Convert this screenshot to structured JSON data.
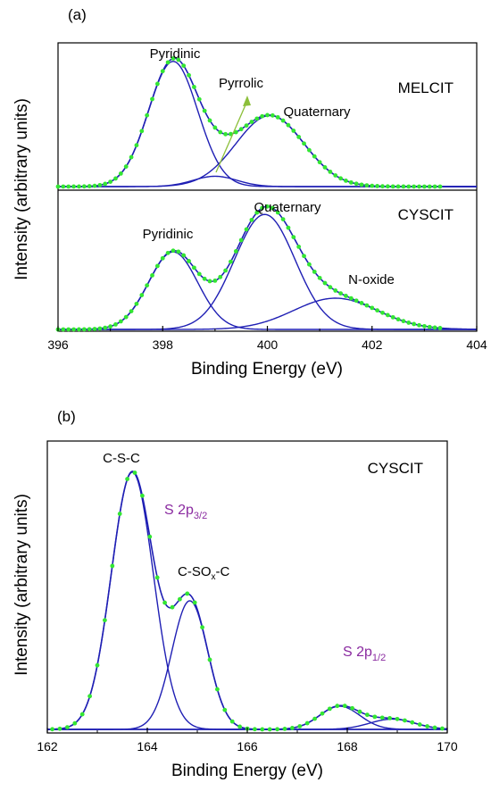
{
  "colors": {
    "fit": "#1f1fb4",
    "data": "#33e633",
    "arrow": "#8cbf3a",
    "accent": "#8a2aa0",
    "axis": "#000000"
  },
  "chart_data": [
    {
      "type": "line",
      "panel_label": "(a)",
      "xlabel": "Binding Energy (eV)",
      "ylabel": "Intensity (arbitrary units)",
      "xlim": [
        396,
        404
      ],
      "xticks": [
        "396",
        "398",
        "400",
        "402",
        "404"
      ],
      "grid": false,
      "subplots": [
        {
          "sample": "MELCIT",
          "ylim": [
            0,
            1.1
          ],
          "peaks": [
            {
              "label": "Pyridinic",
              "center": 398.2,
              "height": 0.97,
              "sigma": 0.47
            },
            {
              "label": "Pyrrolic",
              "center": 399.0,
              "height": 0.08,
              "sigma": 0.42
            },
            {
              "label": "Quaternary",
              "center": 400.05,
              "height": 0.55,
              "sigma": 0.65
            }
          ],
          "data_points": {
            "x_start": 396.0,
            "x_end": 403.3,
            "step": 0.1
          }
        },
        {
          "sample": "CYSCIT",
          "ylim": [
            0,
            1.1
          ],
          "peaks": [
            {
              "label": "Pyridinic",
              "center": 398.2,
              "height": 0.62,
              "sigma": 0.47
            },
            {
              "label": "Quaternary",
              "center": 399.95,
              "height": 0.92,
              "sigma": 0.58
            },
            {
              "label": "N-oxide",
              "center": 401.3,
              "height": 0.25,
              "sigma": 0.8
            }
          ],
          "data_points": {
            "x_start": 396.0,
            "x_end": 403.3,
            "step": 0.1
          }
        }
      ]
    },
    {
      "type": "line",
      "panel_label": "(b)",
      "sample": "CYSCIT",
      "xlabel": "Binding Energy (eV)",
      "ylabel": "Intensity (arbitrary units)",
      "xlim": [
        162,
        170
      ],
      "xticks": [
        "162",
        "164",
        "166",
        "168",
        "170"
      ],
      "ylim": [
        0,
        1.1
      ],
      "grid": false,
      "peaks": [
        {
          "label": "C-S-C",
          "center": 163.7,
          "height": 1.0,
          "sigma": 0.42
        },
        {
          "label": "C-SO",
          "label_sub": "x",
          "label_tail": "-C",
          "center": 164.85,
          "height": 0.5,
          "sigma": 0.36
        },
        {
          "label": "",
          "center": 167.85,
          "height": 0.09,
          "sigma": 0.4
        },
        {
          "label": "",
          "center": 168.9,
          "height": 0.04,
          "sigma": 0.45
        }
      ],
      "annotations": [
        {
          "text": "S 2p",
          "sub": "3/2"
        },
        {
          "text": "S 2p",
          "sub": "1/2"
        }
      ],
      "data_points": {
        "x_start": 162.1,
        "x_end": 169.9,
        "step": 0.15
      }
    }
  ]
}
